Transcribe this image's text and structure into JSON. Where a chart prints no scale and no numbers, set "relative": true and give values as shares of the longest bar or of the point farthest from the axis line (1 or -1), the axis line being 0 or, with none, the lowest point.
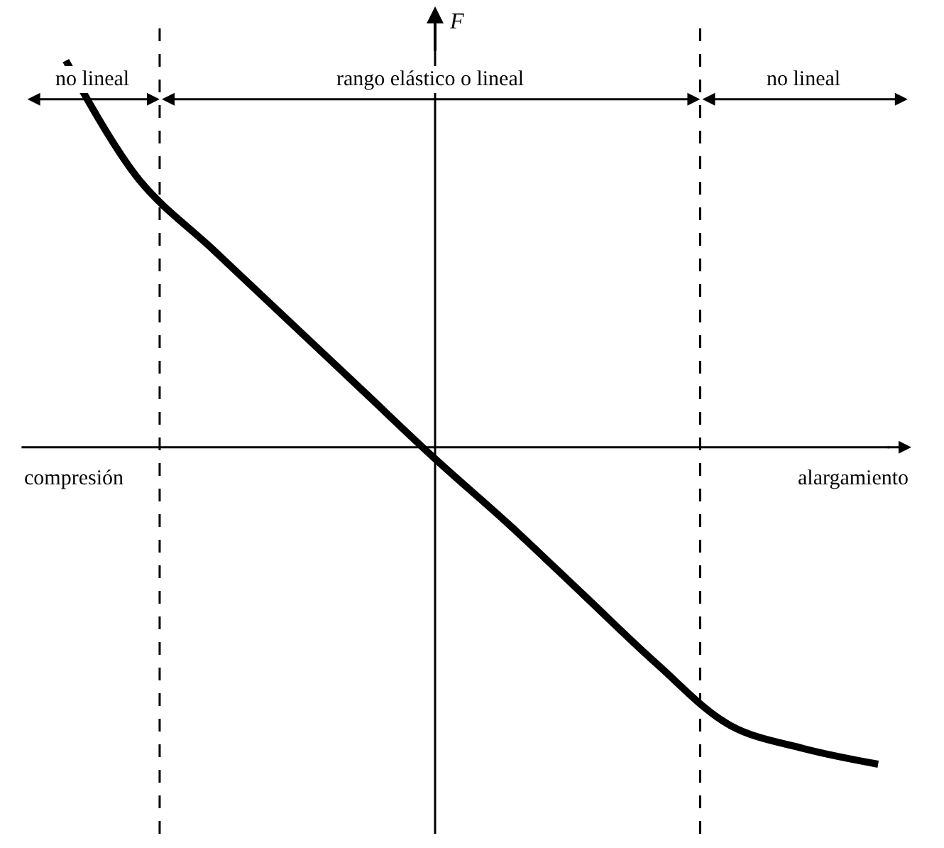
{
  "chart_data": {
    "type": "line",
    "relative": true,
    "categories": [
      null,
      null,
      null,
      null,
      null,
      null,
      null,
      null,
      null,
      null,
      null,
      null
    ],
    "series": [
      {
        "color": "#000000",
        "values": [
          1.0,
          0.69,
          0.51,
          0.33,
          0.15,
          -0.03,
          -0.2,
          -0.38,
          -0.56,
          -0.72,
          -0.78,
          -0.82
        ]
      }
    ],
    "ylabel": "F",
    "ref_lines": [
      {
        "axis": "y",
        "value": 0,
        "label": null,
        "line_style": "solid",
        "color": "#000000"
      }
    ],
    "annotations": [
      "no lineal",
      "rango elástico o lineal",
      "no lineal",
      "compresión",
      "alargamiento"
    ],
    "marker": "none",
    "line_style": "solid",
    "legend": false
  }
}
